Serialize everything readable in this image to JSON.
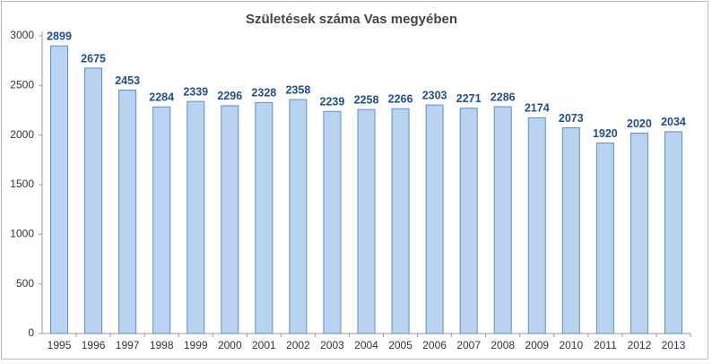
{
  "chart_data": {
    "type": "bar",
    "title": "Születések száma Vas megyében",
    "categories": [
      "1995",
      "1996",
      "1997",
      "1998",
      "1999",
      "2000",
      "2001",
      "2002",
      "2003",
      "2004",
      "2005",
      "2006",
      "2007",
      "2008",
      "2009",
      "2010",
      "2011",
      "2012",
      "2013"
    ],
    "values": [
      2899,
      2675,
      2453,
      2284,
      2339,
      2296,
      2328,
      2358,
      2239,
      2258,
      2266,
      2303,
      2271,
      2286,
      2174,
      2073,
      1920,
      2020,
      2034
    ],
    "color": "#b8d2f0",
    "ylim": [
      0,
      3000
    ],
    "yticks": [
      0,
      500,
      1000,
      1500,
      2000,
      2500,
      3000
    ],
    "grid": false
  }
}
